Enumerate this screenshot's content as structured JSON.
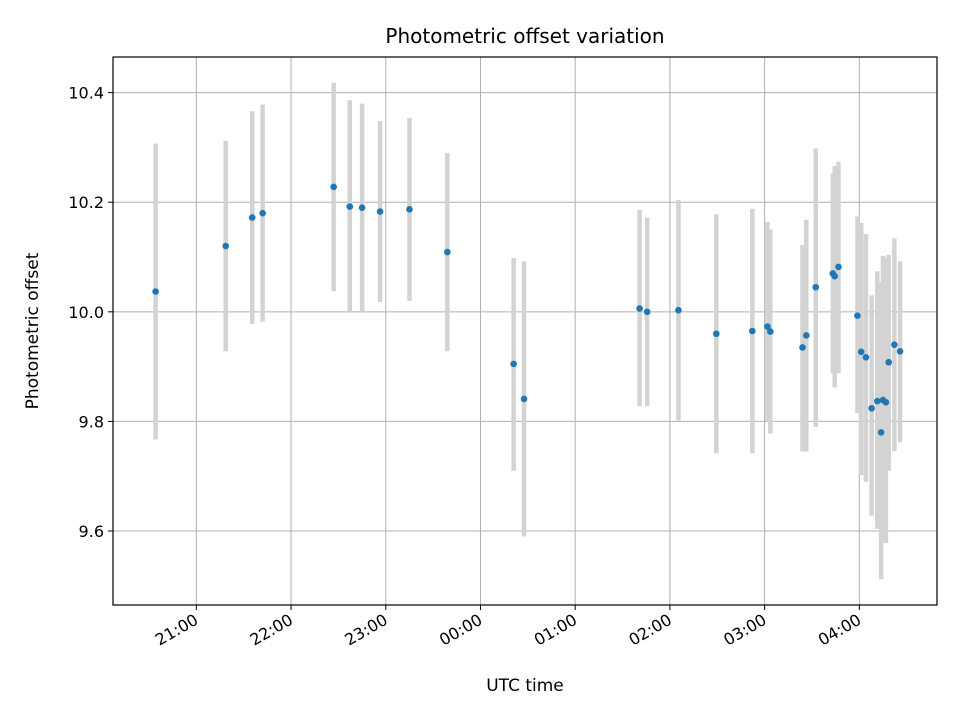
{
  "chart_data": {
    "type": "scatter",
    "title": "Photometric offset variation",
    "xlabel": "UTC time",
    "ylabel": "Photometric offset",
    "x_unit": "hours",
    "xlim": [
      20.12,
      28.82
    ],
    "ylim": [
      9.465,
      10.465
    ],
    "xticks": [
      {
        "x": 21,
        "label": "21:00"
      },
      {
        "x": 22,
        "label": "22:00"
      },
      {
        "x": 23,
        "label": "23:00"
      },
      {
        "x": 24,
        "label": "00:00"
      },
      {
        "x": 25,
        "label": "01:00"
      },
      {
        "x": 26,
        "label": "02:00"
      },
      {
        "x": 27,
        "label": "03:00"
      },
      {
        "x": 28,
        "label": "04:00"
      }
    ],
    "yticks": [
      {
        "y": 9.6,
        "label": "9.6"
      },
      {
        "y": 9.8,
        "label": "9.8"
      },
      {
        "y": 10.0,
        "label": "10.0"
      },
      {
        "y": 10.2,
        "label": "10.2"
      },
      {
        "y": 10.4,
        "label": "10.4"
      }
    ],
    "grid": true,
    "point_color": "#1f77b4",
    "errorbar_color": "#d3d3d3",
    "points": [
      {
        "x": 20.57,
        "y": 10.037,
        "lo": 9.767,
        "hi": 10.307
      },
      {
        "x": 21.31,
        "y": 10.12,
        "lo": 9.928,
        "hi": 10.312
      },
      {
        "x": 21.59,
        "y": 10.172,
        "lo": 9.978,
        "hi": 10.366
      },
      {
        "x": 21.7,
        "y": 10.18,
        "lo": 9.982,
        "hi": 10.378
      },
      {
        "x": 22.45,
        "y": 10.228,
        "lo": 10.038,
        "hi": 10.418
      },
      {
        "x": 22.62,
        "y": 10.192,
        "lo": 10.0,
        "hi": 10.386
      },
      {
        "x": 22.75,
        "y": 10.19,
        "lo": 10.0,
        "hi": 10.38
      },
      {
        "x": 22.94,
        "y": 10.183,
        "lo": 10.018,
        "hi": 10.348
      },
      {
        "x": 23.25,
        "y": 10.187,
        "lo": 10.02,
        "hi": 10.354
      },
      {
        "x": 23.65,
        "y": 10.109,
        "lo": 9.928,
        "hi": 10.29
      },
      {
        "x": 24.35,
        "y": 9.905,
        "lo": 9.71,
        "hi": 10.098
      },
      {
        "x": 24.46,
        "y": 9.841,
        "lo": 9.59,
        "hi": 10.092
      },
      {
        "x": 25.68,
        "y": 10.006,
        "lo": 9.828,
        "hi": 10.186
      },
      {
        "x": 25.76,
        "y": 10.0,
        "lo": 9.828,
        "hi": 10.172
      },
      {
        "x": 26.09,
        "y": 10.003,
        "lo": 9.802,
        "hi": 10.204
      },
      {
        "x": 26.49,
        "y": 9.96,
        "lo": 9.742,
        "hi": 10.178
      },
      {
        "x": 26.87,
        "y": 9.965,
        "lo": 9.742,
        "hi": 10.188
      },
      {
        "x": 27.03,
        "y": 9.973,
        "lo": 9.8,
        "hi": 10.164
      },
      {
        "x": 27.06,
        "y": 9.964,
        "lo": 9.778,
        "hi": 10.15
      },
      {
        "x": 27.4,
        "y": 9.935,
        "lo": 9.745,
        "hi": 10.122
      },
      {
        "x": 27.44,
        "y": 9.957,
        "lo": 9.745,
        "hi": 10.168
      },
      {
        "x": 27.54,
        "y": 10.045,
        "lo": 9.79,
        "hi": 10.298
      },
      {
        "x": 27.72,
        "y": 10.07,
        "lo": 9.888,
        "hi": 10.252
      },
      {
        "x": 27.74,
        "y": 10.065,
        "lo": 9.862,
        "hi": 10.266
      },
      {
        "x": 27.78,
        "y": 10.082,
        "lo": 9.888,
        "hi": 10.274
      },
      {
        "x": 27.98,
        "y": 9.993,
        "lo": 9.815,
        "hi": 10.174
      },
      {
        "x": 28.02,
        "y": 9.927,
        "lo": 9.702,
        "hi": 10.162
      },
      {
        "x": 28.07,
        "y": 9.917,
        "lo": 9.69,
        "hi": 10.142
      },
      {
        "x": 28.13,
        "y": 9.824,
        "lo": 9.628,
        "hi": 10.03
      },
      {
        "x": 28.19,
        "y": 9.837,
        "lo": 9.604,
        "hi": 10.074
      },
      {
        "x": 28.23,
        "y": 9.78,
        "lo": 9.512,
        "hi": 10.054
      },
      {
        "x": 28.25,
        "y": 9.839,
        "lo": 9.582,
        "hi": 10.102
      },
      {
        "x": 28.28,
        "y": 9.835,
        "lo": 9.578,
        "hi": 10.098
      },
      {
        "x": 28.31,
        "y": 9.908,
        "lo": 9.71,
        "hi": 10.104
      },
      {
        "x": 28.37,
        "y": 9.94,
        "lo": 9.746,
        "hi": 10.134
      },
      {
        "x": 28.43,
        "y": 9.928,
        "lo": 9.762,
        "hi": 10.092
      }
    ]
  }
}
